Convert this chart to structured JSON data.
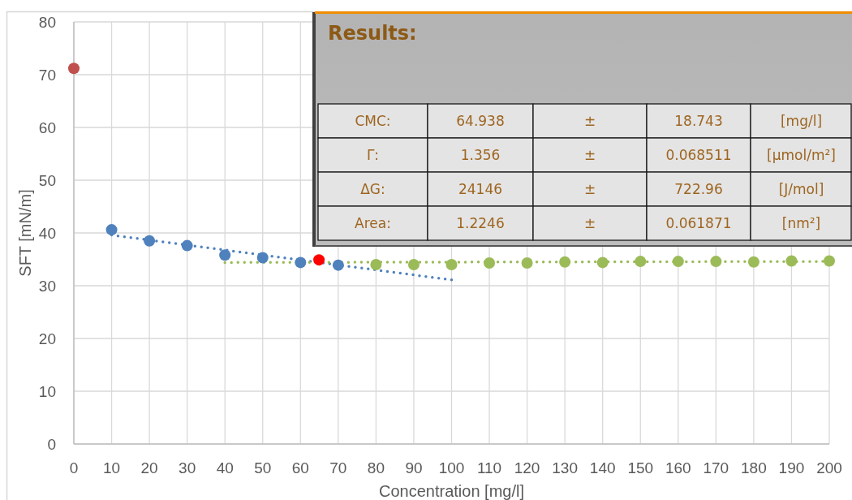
{
  "chart_data": {
    "type": "scatter",
    "xlabel": "Concentration [mg/l]",
    "ylabel": "SFT [mN/m]",
    "xlim": [
      0,
      200
    ],
    "xticks": [
      0,
      10,
      20,
      30,
      40,
      50,
      60,
      70,
      80,
      90,
      100,
      110,
      120,
      130,
      140,
      150,
      160,
      170,
      180,
      190,
      200
    ],
    "ylim": [
      0,
      80
    ],
    "yticks": [
      0,
      10,
      20,
      30,
      40,
      50,
      60,
      70,
      80
    ],
    "grid": true,
    "marker": "circle",
    "series": [
      {
        "color": "#c0504d",
        "x": [
          0
        ],
        "values": [
          71.2
        ]
      },
      {
        "color": "#4f81bd",
        "x": [
          10,
          20,
          30,
          40,
          50,
          60,
          70
        ],
        "values": [
          40.6,
          38.5,
          37.6,
          35.8,
          35.3,
          34.4,
          33.9
        ]
      },
      {
        "color": "#9bbb59",
        "x": [
          80,
          90,
          100,
          110,
          120,
          130,
          140,
          150,
          160,
          170,
          180,
          190,
          200
        ],
        "values": [
          34.0,
          34.0,
          34.0,
          34.3,
          34.3,
          34.5,
          34.4,
          34.6,
          34.6,
          34.6,
          34.5,
          34.7,
          34.7
        ]
      },
      {
        "color": "#ff0000",
        "x": [
          64.9
        ],
        "values": [
          34.9
        ]
      },
      {
        "type": "line",
        "color": "#4f81bd",
        "line_style": "dotted",
        "marker": "none",
        "x": [
          10,
          100
        ],
        "values": [
          39.6,
          31.1
        ]
      },
      {
        "type": "line",
        "color": "#9bbb59",
        "line_style": "dotted",
        "marker": "none",
        "x": [
          40,
          200
        ],
        "values": [
          34.4,
          34.6
        ]
      }
    ],
    "annotations": [
      "Results:",
      "CMC:",
      "64.938",
      "±",
      "18.743",
      "[mg/l]",
      "Γ:",
      "1.356",
      "±",
      "0.068511",
      "[µmol/m²]",
      "ΔG:",
      "24146",
      "±",
      "722.96",
      "[J/mol]",
      "Area:",
      "1.2246",
      "±",
      "0.061871",
      "[nm²]"
    ]
  }
}
